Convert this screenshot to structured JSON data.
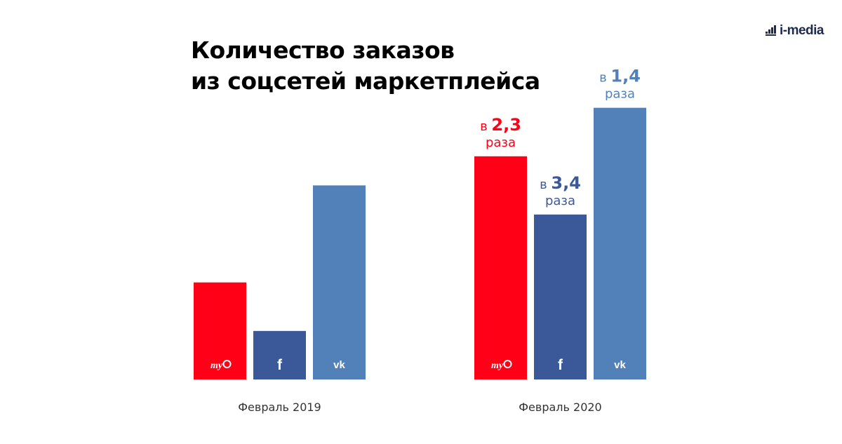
{
  "title": {
    "line1": "Количество заказов",
    "line2": "из соцсетей маркетплейса"
  },
  "brand": {
    "logo_text": "i-media"
  },
  "colors": {
    "mymail": "#ff0016",
    "facebook": "#3b5998",
    "vk": "#5181b8",
    "text": "#000000"
  },
  "chart_data": {
    "type": "bar",
    "title": "Количество заказов из соцсетей маркетплейса",
    "categories": [
      "Февраль 2019",
      "Февраль 2020"
    ],
    "series": [
      {
        "icon": "mymail-icon",
        "color": "#ff0016",
        "values": [
          1.0,
          2.3
        ]
      },
      {
        "icon": "facebook-icon",
        "color": "#3b5998",
        "values": [
          0.5,
          1.7
        ]
      },
      {
        "icon": "vk-icon",
        "color": "#5181b8",
        "values": [
          2.0,
          2.8
        ]
      }
    ],
    "annotations": [
      {
        "category": 1,
        "series": 0,
        "prefix": "в",
        "value": "2,3",
        "suffix": "раза",
        "color": "#ff0016"
      },
      {
        "category": 1,
        "series": 1,
        "prefix": "в",
        "value": "3,4",
        "suffix": "раза",
        "color": "#3b5998"
      },
      {
        "category": 1,
        "series": 2,
        "prefix": "в",
        "value": "1,4",
        "suffix": "раза",
        "color": "#5181b8"
      }
    ],
    "ylim": [
      0,
      3.0
    ],
    "grid": false,
    "legend": "none"
  }
}
